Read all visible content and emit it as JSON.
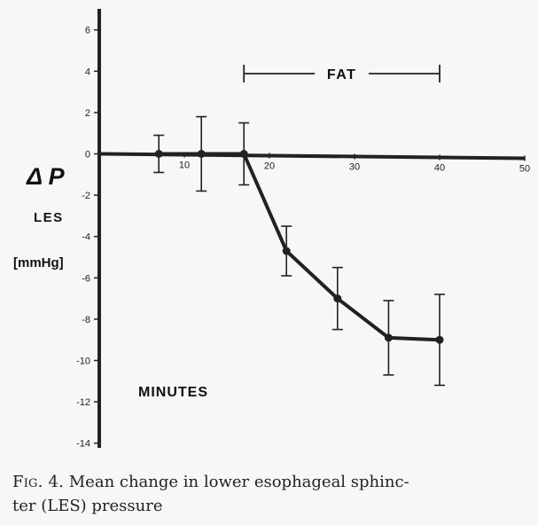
{
  "caption": {
    "fig_label": "Fig. 4.",
    "text": " Mean change in lower esophageal sphinc-\nter (LES) pressure"
  },
  "chart_data": {
    "type": "line",
    "title": "",
    "xlabel": "MINUTES",
    "ylabel": "Δ P",
    "ylabel_sub": "LES",
    "yunit": "[mmHg]",
    "xlim": [
      0,
      50
    ],
    "ylim": [
      -14,
      6
    ],
    "x_ticks": [
      10,
      20,
      30,
      40,
      50
    ],
    "y_ticks": [
      6,
      4,
      2,
      0,
      -2,
      -4,
      -6,
      -8,
      -10,
      -12,
      -14
    ],
    "annotation": {
      "text": "FAT",
      "x_start": 17,
      "x_end": 40
    },
    "grid": false,
    "series": [
      {
        "values": [
          {
            "x": 7,
            "y": 0,
            "err": 0.9
          },
          {
            "x": 12,
            "y": 0,
            "err": 1.8
          },
          {
            "x": 17,
            "y": 0,
            "err": 1.5
          },
          {
            "x": 22,
            "y": -4.7,
            "err": 1.2
          },
          {
            "x": 28,
            "y": -7.0,
            "err": 1.5
          },
          {
            "x": 34,
            "y": -8.9,
            "err": 1.8
          },
          {
            "x": 40,
            "y": -9.0,
            "err": 2.2
          }
        ]
      }
    ],
    "colors": {
      "ink": "#222222",
      "paper": "#f7f7f5"
    }
  }
}
